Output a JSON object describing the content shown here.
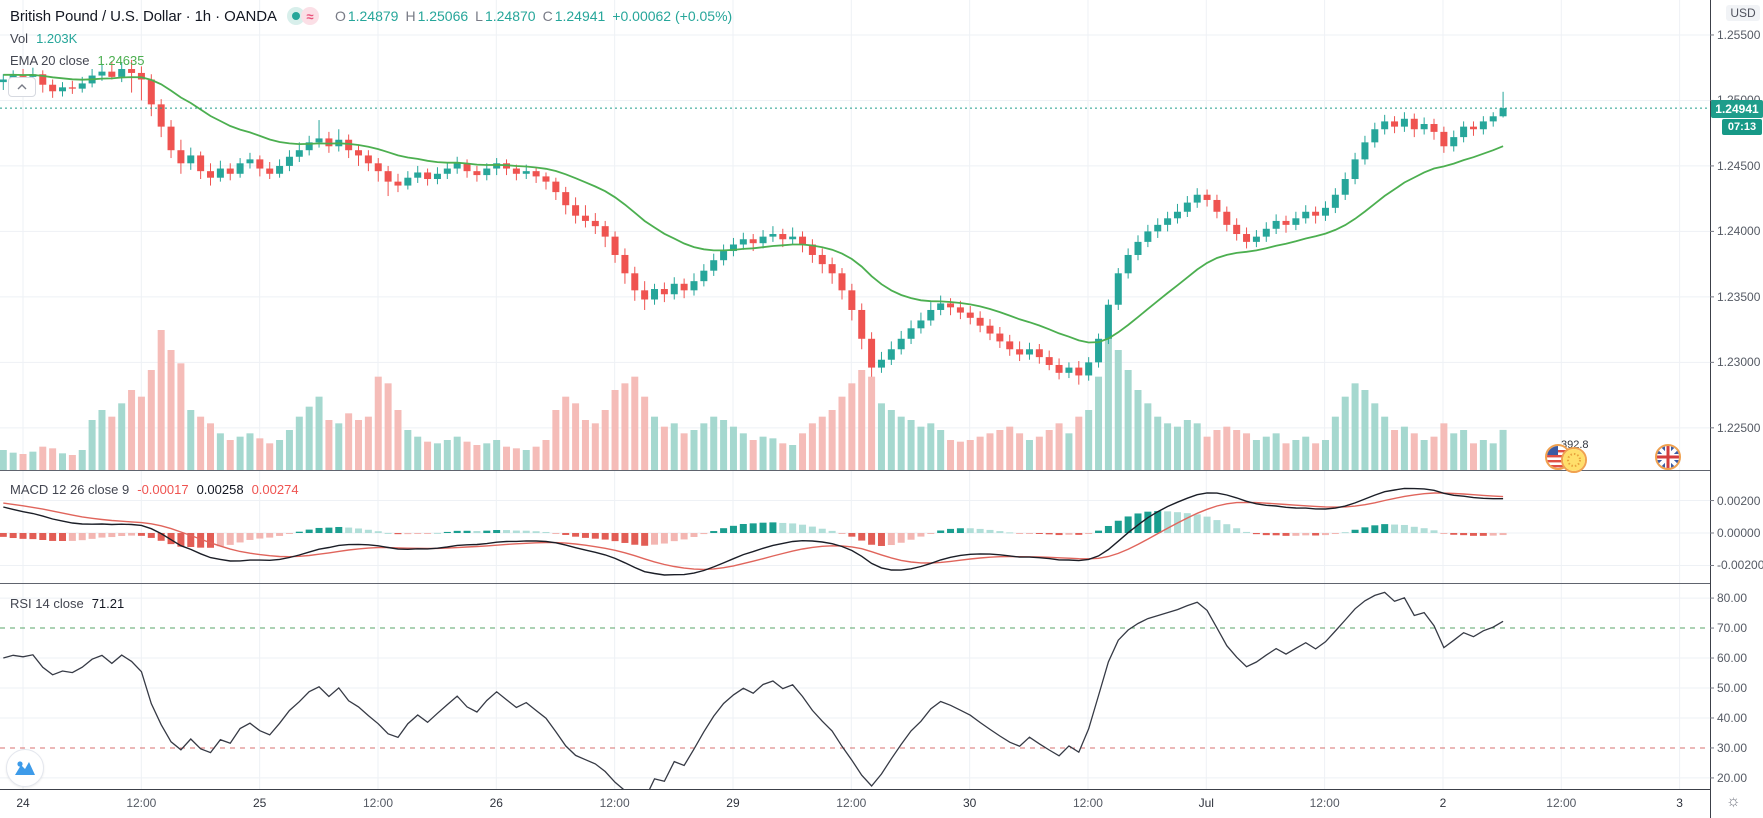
{
  "header": {
    "title": "British Pound / U.S. Dollar · 1h · OANDA",
    "ohlc": {
      "o_label": "O",
      "o": "1.24879",
      "h_label": "H",
      "h": "1.25066",
      "l_label": "L",
      "l": "1.24870",
      "c_label": "C",
      "c": "1.24941",
      "change": "+0.00062 (+0.05%)"
    }
  },
  "icons": {
    "wave_glyph": "≈",
    "sun_glyph": "☼"
  },
  "volume_row": {
    "label": "Vol",
    "value": "1.203K"
  },
  "ema_row": {
    "label": "EMA 20 close",
    "value": "1.24635"
  },
  "macd_row": {
    "label": "MACD 12 26 close 9",
    "hist": "-0.00017",
    "macd": "0.00258",
    "signal": "0.00274"
  },
  "rsi_row": {
    "label": "RSI 14 close",
    "value": "71.21"
  },
  "price_axis": {
    "currency": "USD",
    "tick_labels": [
      "1.25500",
      "1.25000",
      "1.24500",
      "1.24000",
      "1.23500",
      "1.23000",
      "1.22500"
    ],
    "tick_values": [
      1.255,
      1.25,
      1.245,
      1.24,
      1.235,
      1.23,
      1.225
    ],
    "last_price": "1.24941",
    "last_price_value": 1.24941,
    "countdown": "07:13"
  },
  "macd_axis": {
    "tick_labels": [
      "0.00200",
      "0.00000",
      "-0.00200"
    ],
    "tick_values": [
      0.002,
      0,
      -0.002
    ]
  },
  "rsi_axis": {
    "tick_labels": [
      "80.00",
      "70.00",
      "60.00",
      "50.00",
      "40.00",
      "30.00",
      "20.00"
    ],
    "tick_values": [
      80,
      70,
      60,
      50,
      40,
      30,
      20
    ],
    "upper_band": 70,
    "lower_band": 30
  },
  "time_axis": {
    "labels": [
      "24",
      "12:00",
      "25",
      "12:00",
      "26",
      "12:00",
      "29",
      "12:00",
      "30",
      "12:00",
      "Jul",
      "12:00",
      "2",
      "12:00",
      "3"
    ]
  },
  "events": {
    "value": "392.8",
    "flags": [
      "us-flag",
      "eu-flag",
      "gb-flag"
    ]
  },
  "palette": {
    "up": "#26a69a",
    "down": "#ef5350",
    "vol_up": "#a5d8cf",
    "vol_down": "#f5bcb8",
    "ema": "#4caf50",
    "macd_line": "#1b1e27",
    "signal_line": "#e0655c",
    "hist_pos_grow": "#1a9e8f",
    "hist_pos_fall": "#b0ded8",
    "hist_neg_fall": "#e25d55",
    "hist_neg_rise": "#f3b6b2",
    "rsi_line": "#363a45",
    "rsi_upper": "#58a668",
    "rsi_lower": "#d97070",
    "grid": "#eef1f5",
    "separator": "#60646e",
    "axis_line": "#3c4049",
    "last_price": "#1e9d8b"
  },
  "chart_data": {
    "type": "candlestick",
    "symbol": "British Pound / U.S. Dollar",
    "exchange": "OANDA",
    "interval": "1h",
    "legend_note": "panes: price+EMA20+volume, MACD(12,26,9), RSI(14)",
    "price_axis_range": [
      1.22178,
      1.25767
    ],
    "macd_axis_range": [
      -0.00308,
      0.00382
    ],
    "rsi_axis_range": [
      16.3,
      84.7
    ],
    "volume_max": 4200,
    "indicators": {
      "ema20_seed": 1.252,
      "ema12_seed": 1.2524,
      "ema26_seed": 1.2506,
      "signal_seed": 0.0019,
      "rsi_gain_seed": 0.0006,
      "rsi_loss_seed": 0.0004
    },
    "candles": [
      [
        1.2514,
        1.252,
        1.2508,
        1.2516,
        600
      ],
      [
        1.2516,
        1.2523,
        1.2512,
        1.2519,
        520
      ],
      [
        1.2519,
        1.2524,
        1.2515,
        1.2518,
        480
      ],
      [
        1.2518,
        1.2525,
        1.2514,
        1.252,
        550
      ],
      [
        1.252,
        1.2523,
        1.2506,
        1.2512,
        700
      ],
      [
        1.2512,
        1.2516,
        1.2502,
        1.2507,
        650
      ],
      [
        1.2507,
        1.2514,
        1.2503,
        1.251,
        500
      ],
      [
        1.251,
        1.2515,
        1.2505,
        1.2509,
        450
      ],
      [
        1.2509,
        1.2518,
        1.2506,
        1.2513,
        600
      ],
      [
        1.2513,
        1.2524,
        1.251,
        1.2519,
        1500
      ],
      [
        1.2519,
        1.2528,
        1.2515,
        1.2522,
        1800
      ],
      [
        1.2522,
        1.253,
        1.2516,
        1.2518,
        1600
      ],
      [
        1.2518,
        1.2529,
        1.2514,
        1.2524,
        2000
      ],
      [
        1.2524,
        1.2531,
        1.2506,
        1.2521,
        2400
      ],
      [
        1.2521,
        1.2526,
        1.25,
        1.2516,
        2200
      ],
      [
        1.2516,
        1.252,
        1.2488,
        1.2497,
        3000
      ],
      [
        1.2497,
        1.2501,
        1.2472,
        1.248,
        4200
      ],
      [
        1.248,
        1.2485,
        1.2456,
        1.2462,
        3600
      ],
      [
        1.2462,
        1.247,
        1.2444,
        1.2452,
        3200
      ],
      [
        1.2452,
        1.2464,
        1.2447,
        1.2458,
        1800
      ],
      [
        1.2458,
        1.2461,
        1.244,
        1.2446,
        1600
      ],
      [
        1.2446,
        1.2452,
        1.2435,
        1.2441,
        1400
      ],
      [
        1.2441,
        1.2454,
        1.2438,
        1.2448,
        1100
      ],
      [
        1.2448,
        1.2452,
        1.2439,
        1.2444,
        900
      ],
      [
        1.2444,
        1.2456,
        1.2441,
        1.2452,
        1000
      ],
      [
        1.2452,
        1.246,
        1.2448,
        1.2455,
        1100
      ],
      [
        1.2455,
        1.2458,
        1.2442,
        1.2448,
        950
      ],
      [
        1.2448,
        1.2453,
        1.244,
        1.2444,
        800
      ],
      [
        1.2444,
        1.2455,
        1.2441,
        1.245,
        900
      ],
      [
        1.245,
        1.2462,
        1.2446,
        1.2457,
        1200
      ],
      [
        1.2457,
        1.2468,
        1.2453,
        1.2462,
        1600
      ],
      [
        1.2462,
        1.2473,
        1.2458,
        1.2468,
        1900
      ],
      [
        1.2468,
        1.2485,
        1.2464,
        1.2471,
        2200
      ],
      [
        1.2471,
        1.2476,
        1.246,
        1.2465,
        1500
      ],
      [
        1.2465,
        1.2478,
        1.2461,
        1.247,
        1400
      ],
      [
        1.247,
        1.2474,
        1.2456,
        1.2462,
        1700
      ],
      [
        1.2462,
        1.2466,
        1.245,
        1.2458,
        1500
      ],
      [
        1.2458,
        1.2462,
        1.2446,
        1.2452,
        1600
      ],
      [
        1.2452,
        1.2456,
        1.2438,
        1.2446,
        2800
      ],
      [
        1.2446,
        1.245,
        1.2427,
        1.2438,
        2600
      ],
      [
        1.2438,
        1.2444,
        1.243,
        1.2435,
        1800
      ],
      [
        1.2435,
        1.2446,
        1.2432,
        1.2441,
        1200
      ],
      [
        1.2441,
        1.245,
        1.2437,
        1.2445,
        1000
      ],
      [
        1.2445,
        1.2448,
        1.2435,
        1.244,
        850
      ],
      [
        1.244,
        1.2449,
        1.2436,
        1.2444,
        800
      ],
      [
        1.2444,
        1.2453,
        1.244,
        1.2448,
        900
      ],
      [
        1.2448,
        1.2457,
        1.2444,
        1.2452,
        1000
      ],
      [
        1.2452,
        1.2455,
        1.2441,
        1.2446,
        850
      ],
      [
        1.2446,
        1.245,
        1.2438,
        1.2443,
        750
      ],
      [
        1.2443,
        1.2452,
        1.2439,
        1.2448,
        800
      ],
      [
        1.2448,
        1.2456,
        1.2443,
        1.2452,
        900
      ],
      [
        1.2452,
        1.2455,
        1.2443,
        1.2448,
        700
      ],
      [
        1.2448,
        1.2451,
        1.2439,
        1.2444,
        650
      ],
      [
        1.2444,
        1.2451,
        1.244,
        1.2446,
        600
      ],
      [
        1.2446,
        1.2449,
        1.2437,
        1.2442,
        700
      ],
      [
        1.2442,
        1.2445,
        1.2432,
        1.2438,
        900
      ],
      [
        1.2438,
        1.2441,
        1.2424,
        1.243,
        1800
      ],
      [
        1.243,
        1.2434,
        1.2413,
        1.242,
        2200
      ],
      [
        1.242,
        1.2426,
        1.2406,
        1.2412,
        2000
      ],
      [
        1.2412,
        1.242,
        1.2403,
        1.2408,
        1500
      ],
      [
        1.2408,
        1.2414,
        1.2398,
        1.2404,
        1400
      ],
      [
        1.2404,
        1.2408,
        1.2388,
        1.2396,
        1800
      ],
      [
        1.2396,
        1.24,
        1.2376,
        1.2382,
        2400
      ],
      [
        1.2382,
        1.2387,
        1.236,
        1.2368,
        2600
      ],
      [
        1.2368,
        1.2373,
        1.2347,
        1.2355,
        2800
      ],
      [
        1.2355,
        1.2362,
        1.234,
        1.2348,
        2200
      ],
      [
        1.2348,
        1.236,
        1.2344,
        1.2356,
        1600
      ],
      [
        1.2356,
        1.2361,
        1.2346,
        1.2352,
        1300
      ],
      [
        1.2352,
        1.2365,
        1.2348,
        1.236,
        1400
      ],
      [
        1.236,
        1.2364,
        1.2349,
        1.2355,
        1100
      ],
      [
        1.2355,
        1.2368,
        1.2351,
        1.2362,
        1200
      ],
      [
        1.2362,
        1.2375,
        1.2358,
        1.237,
        1400
      ],
      [
        1.237,
        1.2383,
        1.2366,
        1.2378,
        1600
      ],
      [
        1.2378,
        1.239,
        1.2374,
        1.2385,
        1500
      ],
      [
        1.2385,
        1.2395,
        1.2381,
        1.239,
        1300
      ],
      [
        1.239,
        1.2399,
        1.2386,
        1.2394,
        1100
      ],
      [
        1.2394,
        1.2398,
        1.2385,
        1.2391,
        900
      ],
      [
        1.2391,
        1.2401,
        1.2387,
        1.2396,
        1000
      ],
      [
        1.2396,
        1.2404,
        1.2392,
        1.2398,
        950
      ],
      [
        1.2398,
        1.2402,
        1.2388,
        1.2394,
        800
      ],
      [
        1.2394,
        1.2403,
        1.239,
        1.2396,
        750
      ],
      [
        1.2396,
        1.24,
        1.2384,
        1.239,
        1100
      ],
      [
        1.239,
        1.2394,
        1.2376,
        1.2382,
        1400
      ],
      [
        1.2382,
        1.2387,
        1.2368,
        1.2375,
        1600
      ],
      [
        1.2375,
        1.238,
        1.236,
        1.2368,
        1800
      ],
      [
        1.2368,
        1.2372,
        1.2348,
        1.2355,
        2200
      ],
      [
        1.2355,
        1.236,
        1.2332,
        1.234,
        2600
      ],
      [
        1.234,
        1.2345,
        1.231,
        1.2318,
        3000
      ],
      [
        1.2318,
        1.2323,
        1.2289,
        1.2296,
        2800
      ],
      [
        1.2296,
        1.2308,
        1.2292,
        1.2302,
        2000
      ],
      [
        1.2302,
        1.2316,
        1.2298,
        1.231,
        1800
      ],
      [
        1.231,
        1.2324,
        1.2306,
        1.2318,
        1600
      ],
      [
        1.2318,
        1.2332,
        1.2314,
        1.2326,
        1500
      ],
      [
        1.2326,
        1.2338,
        1.2322,
        1.2332,
        1300
      ],
      [
        1.2332,
        1.2346,
        1.2328,
        1.234,
        1400
      ],
      [
        1.234,
        1.2351,
        1.2336,
        1.2345,
        1200
      ],
      [
        1.2345,
        1.2349,
        1.2336,
        1.2342,
        900
      ],
      [
        1.2342,
        1.2347,
        1.2333,
        1.2338,
        850
      ],
      [
        1.2338,
        1.2343,
        1.2329,
        1.2334,
        900
      ],
      [
        1.2334,
        1.2339,
        1.2323,
        1.2328,
        1000
      ],
      [
        1.2328,
        1.2333,
        1.2317,
        1.2322,
        1100
      ],
      [
        1.2322,
        1.2327,
        1.2311,
        1.2316,
        1200
      ],
      [
        1.2316,
        1.2321,
        1.2305,
        1.231,
        1300
      ],
      [
        1.231,
        1.2316,
        1.2301,
        1.2306,
        1100
      ],
      [
        1.2306,
        1.2315,
        1.2302,
        1.231,
        900
      ],
      [
        1.231,
        1.2314,
        1.2299,
        1.2304,
        1000
      ],
      [
        1.2304,
        1.2309,
        1.2294,
        1.2298,
        1200
      ],
      [
        1.2298,
        1.2303,
        1.2287,
        1.2292,
        1400
      ],
      [
        1.2292,
        1.23,
        1.2288,
        1.2296,
        1100
      ],
      [
        1.2296,
        1.2301,
        1.2283,
        1.229,
        1600
      ],
      [
        1.229,
        1.2304,
        1.2286,
        1.23,
        1800
      ],
      [
        1.23,
        1.2322,
        1.2296,
        1.2318,
        2800
      ],
      [
        1.2318,
        1.2348,
        1.2314,
        1.2344,
        4000
      ],
      [
        1.2344,
        1.2372,
        1.234,
        1.2368,
        3600
      ],
      [
        1.2368,
        1.2387,
        1.2364,
        1.2382,
        3000
      ],
      [
        1.2382,
        1.2397,
        1.2378,
        1.2392,
        2400
      ],
      [
        1.2392,
        1.2405,
        1.2388,
        1.24,
        2000
      ],
      [
        1.24,
        1.241,
        1.2395,
        1.2405,
        1600
      ],
      [
        1.2405,
        1.2415,
        1.24,
        1.241,
        1400
      ],
      [
        1.241,
        1.2421,
        1.2406,
        1.2415,
        1300
      ],
      [
        1.2415,
        1.2427,
        1.2411,
        1.2422,
        1500
      ],
      [
        1.2422,
        1.2433,
        1.2418,
        1.2428,
        1400
      ],
      [
        1.2428,
        1.2432,
        1.2419,
        1.2424,
        1000
      ],
      [
        1.2424,
        1.2428,
        1.241,
        1.2415,
        1200
      ],
      [
        1.2415,
        1.2419,
        1.24,
        1.2405,
        1300
      ],
      [
        1.2405,
        1.241,
        1.2393,
        1.2398,
        1200
      ],
      [
        1.2398,
        1.2403,
        1.2387,
        1.2392,
        1100
      ],
      [
        1.2392,
        1.2401,
        1.2388,
        1.2396,
        900
      ],
      [
        1.2396,
        1.2407,
        1.2392,
        1.2402,
        1000
      ],
      [
        1.2402,
        1.2413,
        1.2398,
        1.2408,
        1100
      ],
      [
        1.2408,
        1.2412,
        1.2399,
        1.2405,
        800
      ],
      [
        1.2405,
        1.2415,
        1.2401,
        1.241,
        900
      ],
      [
        1.241,
        1.242,
        1.2406,
        1.2415,
        1000
      ],
      [
        1.2415,
        1.2419,
        1.2406,
        1.2412,
        800
      ],
      [
        1.2412,
        1.2423,
        1.2408,
        1.2418,
        900
      ],
      [
        1.2418,
        1.2433,
        1.2414,
        1.2428,
        1600
      ],
      [
        1.2428,
        1.2445,
        1.2424,
        1.244,
        2200
      ],
      [
        1.244,
        1.246,
        1.2436,
        1.2455,
        2600
      ],
      [
        1.2455,
        1.2473,
        1.2451,
        1.2468,
        2400
      ],
      [
        1.2468,
        1.2483,
        1.2464,
        1.2478,
        2000
      ],
      [
        1.2478,
        1.2489,
        1.2474,
        1.2484,
        1600
      ],
      [
        1.2484,
        1.2488,
        1.2475,
        1.248,
        1200
      ],
      [
        1.248,
        1.2491,
        1.2476,
        1.2486,
        1300
      ],
      [
        1.2486,
        1.249,
        1.2472,
        1.2478,
        1100
      ],
      [
        1.2478,
        1.2487,
        1.2474,
        1.2482,
        900
      ],
      [
        1.2482,
        1.2486,
        1.247,
        1.2476,
        1000
      ],
      [
        1.2476,
        1.248,
        1.246,
        1.2465,
        1400
      ],
      [
        1.2465,
        1.2477,
        1.2461,
        1.2472,
        1100
      ],
      [
        1.2472,
        1.2484,
        1.2468,
        1.248,
        1200
      ],
      [
        1.248,
        1.2484,
        1.2473,
        1.2478,
        800
      ],
      [
        1.2478,
        1.2488,
        1.2474,
        1.2484,
        900
      ],
      [
        1.2484,
        1.2491,
        1.248,
        1.24879,
        800
      ],
      [
        1.24879,
        1.25066,
        1.2487,
        1.24941,
        1203
      ]
    ]
  }
}
